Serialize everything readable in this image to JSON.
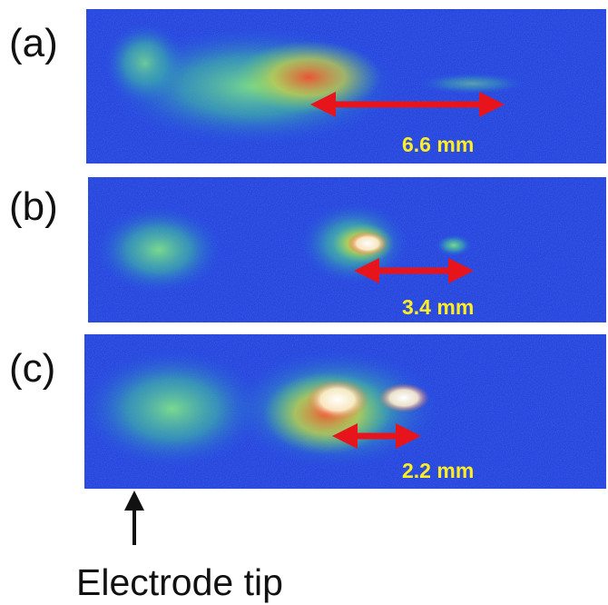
{
  "panels": [
    {
      "label": "(a)",
      "measurement": "6.6 mm"
    },
    {
      "label": "(b)",
      "measurement": "3.4 mm"
    },
    {
      "label": "(c)",
      "measurement": "2.2 mm"
    }
  ],
  "annotation": "Electrode tip"
}
